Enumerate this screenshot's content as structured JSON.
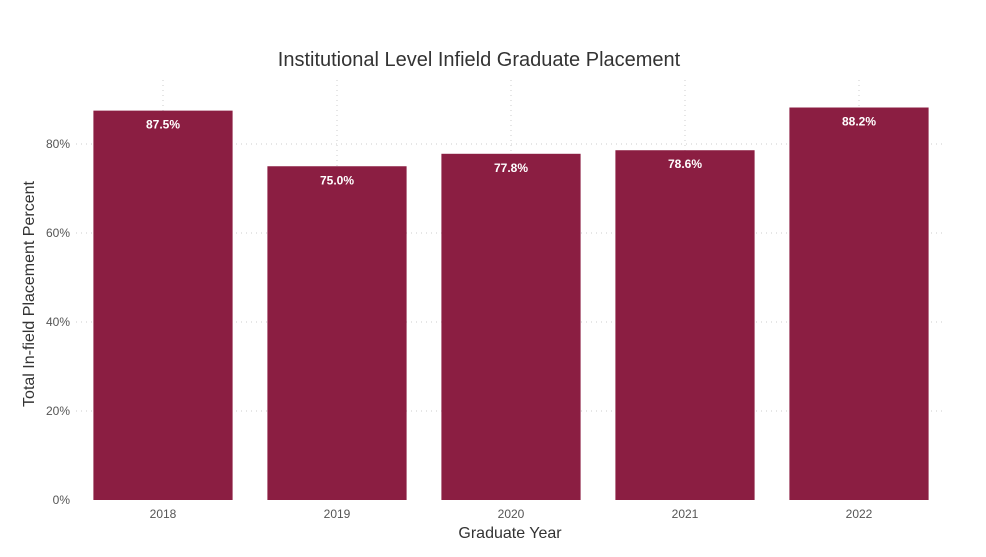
{
  "chart_data": {
    "type": "bar",
    "title": "Institutional Level Infield Graduate Placement",
    "xlabel": "Graduate Year",
    "ylabel": "Total In-field Placement Percent",
    "categories": [
      "2018",
      "2019",
      "2020",
      "2021",
      "2022"
    ],
    "values": [
      87.5,
      75.0,
      77.8,
      78.6,
      88.2
    ],
    "data_labels": [
      "87.5%",
      "75.0%",
      "77.8%",
      "78.6%",
      "88.2%"
    ],
    "yticks": [
      0,
      20,
      40,
      60,
      80
    ],
    "ytick_labels": [
      "0%",
      "20%",
      "40%",
      "60%",
      "80%"
    ],
    "ylim": [
      0,
      92
    ],
    "grid": true,
    "legend": "none",
    "bar_color": "#8b1e42"
  }
}
